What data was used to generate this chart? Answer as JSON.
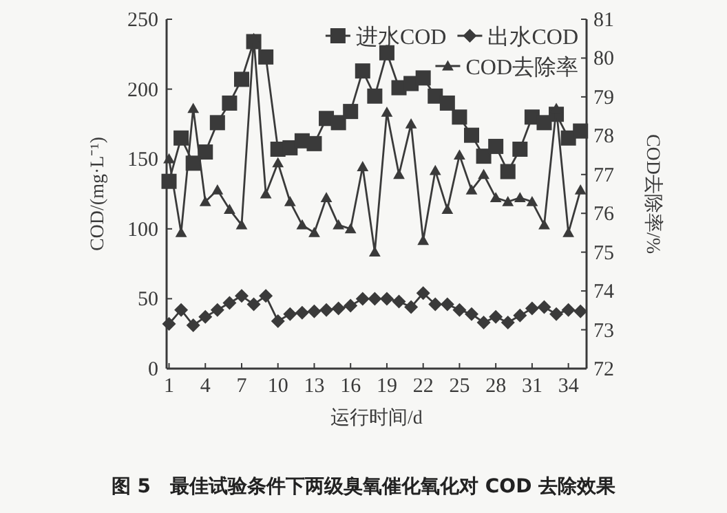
{
  "chart_data": {
    "type": "line",
    "title": "图 5　最佳试验条件下两级臭氧催化氧化对 COD 去除效果",
    "xlabel": "运行时间/d",
    "ylabel": "COD/(mg·L⁻¹)",
    "y2label": "COD去除率/%",
    "x": [
      1,
      2,
      3,
      4,
      5,
      6,
      7,
      8,
      9,
      10,
      11,
      12,
      13,
      14,
      15,
      16,
      17,
      18,
      19,
      20,
      21,
      22,
      23,
      24,
      25,
      26,
      27,
      28,
      29,
      30,
      31,
      32,
      33,
      34,
      35
    ],
    "xlim": [
      0.8,
      35.5
    ],
    "xticks": [
      1,
      4,
      7,
      10,
      13,
      16,
      19,
      22,
      25,
      28,
      31,
      34
    ],
    "ylim": [
      0,
      250
    ],
    "yticks": [
      0,
      50,
      100,
      150,
      200,
      250
    ],
    "y2lim": [
      72,
      81
    ],
    "y2ticks": [
      72,
      73,
      74,
      75,
      76,
      77,
      78,
      79,
      80,
      81
    ],
    "grid": false,
    "legend": "top right",
    "line_style": "solid",
    "series": [
      {
        "name": "进水COD",
        "color": "#3a3a3a",
        "marker": "square",
        "values": [
          134,
          165,
          147,
          155,
          176,
          190,
          207,
          234,
          223,
          157,
          158,
          163,
          161,
          179,
          176,
          184,
          213,
          195,
          226,
          201,
          204,
          208,
          195,
          190,
          180,
          167,
          152,
          159,
          141,
          157,
          180,
          176,
          182,
          165,
          170
        ]
      },
      {
        "name": "出水COD",
        "color": "#3a3a3a",
        "marker": "diamond",
        "values": [
          32,
          42,
          31,
          37,
          42,
          47,
          52,
          46,
          52,
          34,
          39,
          40,
          41,
          42,
          43,
          45,
          50,
          50,
          50,
          48,
          44,
          54,
          46,
          46,
          42,
          39,
          33,
          37,
          33,
          38,
          43,
          44,
          39,
          42,
          41
        ]
      },
      {
        "name": "COD去除率",
        "color": "#3a3a3a",
        "marker": "triangle",
        "axis": "y2",
        "values": [
          77.4,
          75.5,
          78.7,
          76.3,
          76.6,
          76.1,
          75.7,
          80.5,
          76.5,
          77.3,
          76.3,
          75.7,
          75.5,
          76.4,
          75.7,
          75.6,
          77.2,
          75.0,
          78.6,
          77.0,
          78.3,
          75.3,
          77.1,
          76.1,
          77.5,
          76.6,
          77.0,
          76.4,
          76.3,
          76.4,
          76.3,
          75.7,
          78.7,
          75.5,
          76.6
        ]
      }
    ]
  }
}
